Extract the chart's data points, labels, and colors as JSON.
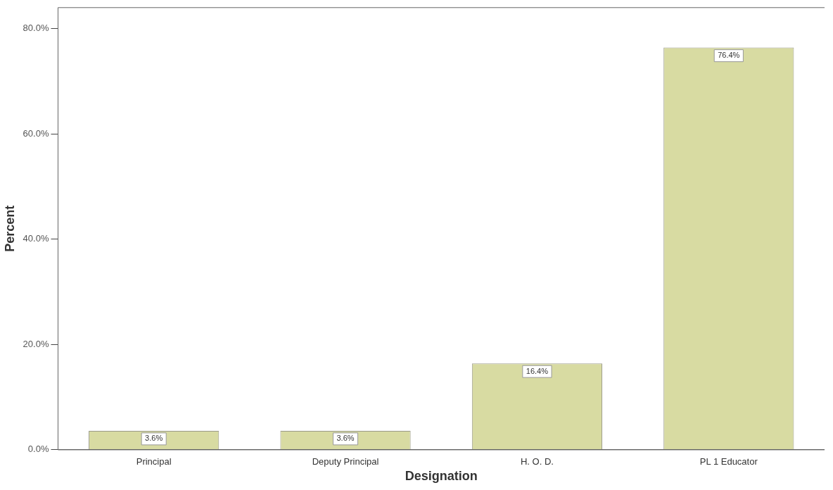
{
  "chart_data": {
    "type": "bar",
    "xlabel": "Designation",
    "ylabel": "Percent",
    "categories": [
      "Principal",
      "Deputy Principal",
      "H. O. D.",
      "PL 1 Educator"
    ],
    "values": [
      3.6,
      3.6,
      16.4,
      76.4
    ],
    "color": "#d8dba2",
    "value_labels": [
      "3.6%",
      "3.6%",
      "16.4%",
      "76.4%"
    ],
    "ylim": [
      0,
      84
    ],
    "yticks": [
      {
        "value": 0,
        "label": "0.0%"
      },
      {
        "value": 20,
        "label": "20.0%"
      },
      {
        "value": 40,
        "label": "40.0%"
      },
      {
        "value": 60,
        "label": "60.0%"
      },
      {
        "value": 80,
        "label": "80.0%"
      }
    ],
    "grid": false,
    "legend": false
  }
}
